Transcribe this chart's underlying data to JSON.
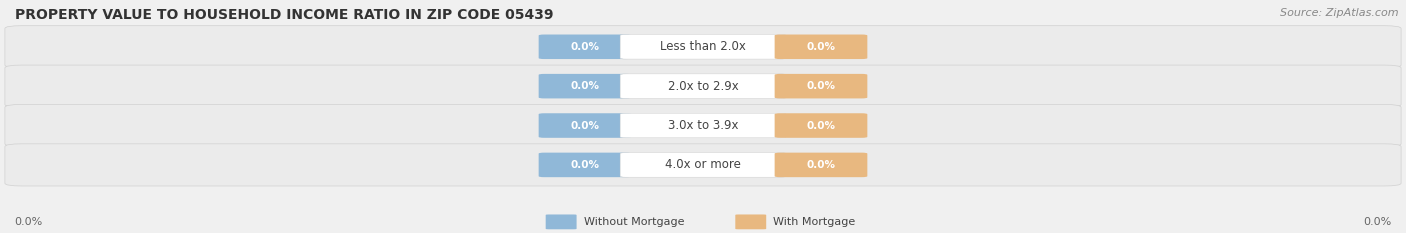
{
  "title": "PROPERTY VALUE TO HOUSEHOLD INCOME RATIO IN ZIP CODE 05439",
  "source_text": "Source: ZipAtlas.com",
  "categories": [
    "Less than 2.0x",
    "2.0x to 2.9x",
    "3.0x to 3.9x",
    "4.0x or more"
  ],
  "without_mortgage": [
    0.0,
    0.0,
    0.0,
    0.0
  ],
  "with_mortgage": [
    0.0,
    0.0,
    0.0,
    0.0
  ],
  "bar_color_left": "#90b8d8",
  "bar_color_right": "#e8b880",
  "category_bg": "#ffffff",
  "row_bg_color": "#e8e8e8",
  "axis_label_left": "0.0%",
  "axis_label_right": "0.0%",
  "legend_left": "Without Mortgage",
  "legend_right": "With Mortgage",
  "title_fontsize": 10,
  "source_fontsize": 8,
  "bar_label_fontsize": 7.5,
  "category_fontsize": 8.5,
  "background_color": "#f0f0f0"
}
